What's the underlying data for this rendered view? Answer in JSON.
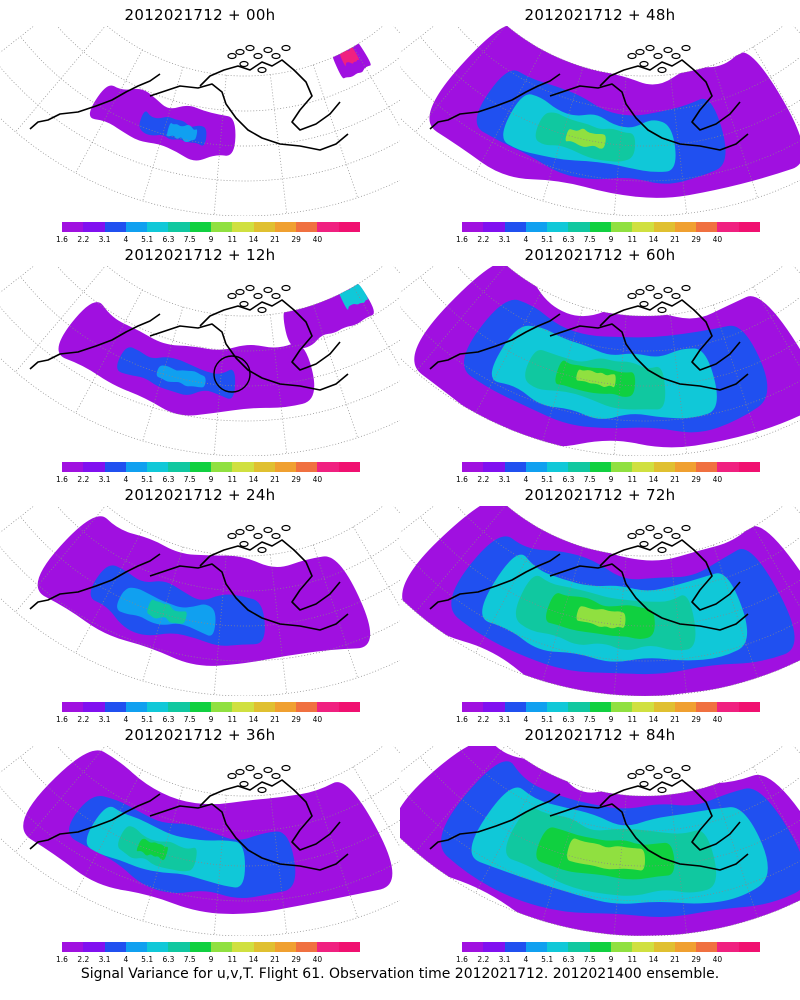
{
  "panels": [
    {
      "title": "2012021712 + 00h"
    },
    {
      "title": "2012021712 + 48h"
    },
    {
      "title": "2012021712 + 12h"
    },
    {
      "title": "2012021712 + 60h"
    },
    {
      "title": "2012021712 + 24h"
    },
    {
      "title": "2012021712 + 72h"
    },
    {
      "title": "2012021712 + 36h"
    },
    {
      "title": "2012021712 + 84h"
    }
  ],
  "colorbar": {
    "labels": [
      "1.6",
      "2.2",
      "3.1",
      "4",
      "5.1",
      "6.3",
      "7.5",
      "9",
      "11",
      "14",
      "21",
      "29",
      "40"
    ],
    "colors": [
      "#a010e0",
      "#8010f0",
      "#2050f0",
      "#10a0f0",
      "#10c8d8",
      "#10c8a0",
      "#10d040",
      "#90e040",
      "#d0e040",
      "#e0c030",
      "#f0a030",
      "#f07040",
      "#f02080",
      "#f01070"
    ]
  },
  "caption": "Signal Variance for u,v,T. Flight 61. Observation time 2012021712. 2012021400 ensemble."
}
